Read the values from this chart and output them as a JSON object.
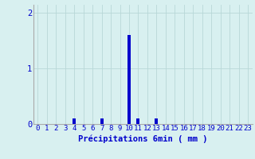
{
  "x_values": [
    0,
    1,
    2,
    3,
    4,
    5,
    6,
    7,
    8,
    9,
    10,
    11,
    12,
    13,
    14,
    15,
    16,
    17,
    18,
    19,
    20,
    21,
    22,
    23
  ],
  "y_values": [
    0,
    0,
    0,
    0,
    0.1,
    0,
    0,
    0.1,
    0,
    0,
    1.6,
    0.1,
    0,
    0.1,
    0,
    0,
    0,
    0,
    0,
    0,
    0,
    0,
    0,
    0
  ],
  "bar_color": "#0000cc",
  "background_color": "#d8f0f0",
  "grid_color": "#b8d8d8",
  "text_color": "#0000cc",
  "xlabel": "Précipitations 6min ( mm )",
  "ylim": [
    0,
    2.15
  ],
  "yticks": [
    0,
    1,
    2
  ],
  "xlim": [
    -0.5,
    23.5
  ],
  "xlabel_fontsize": 7.5,
  "tick_fontsize": 6.5
}
